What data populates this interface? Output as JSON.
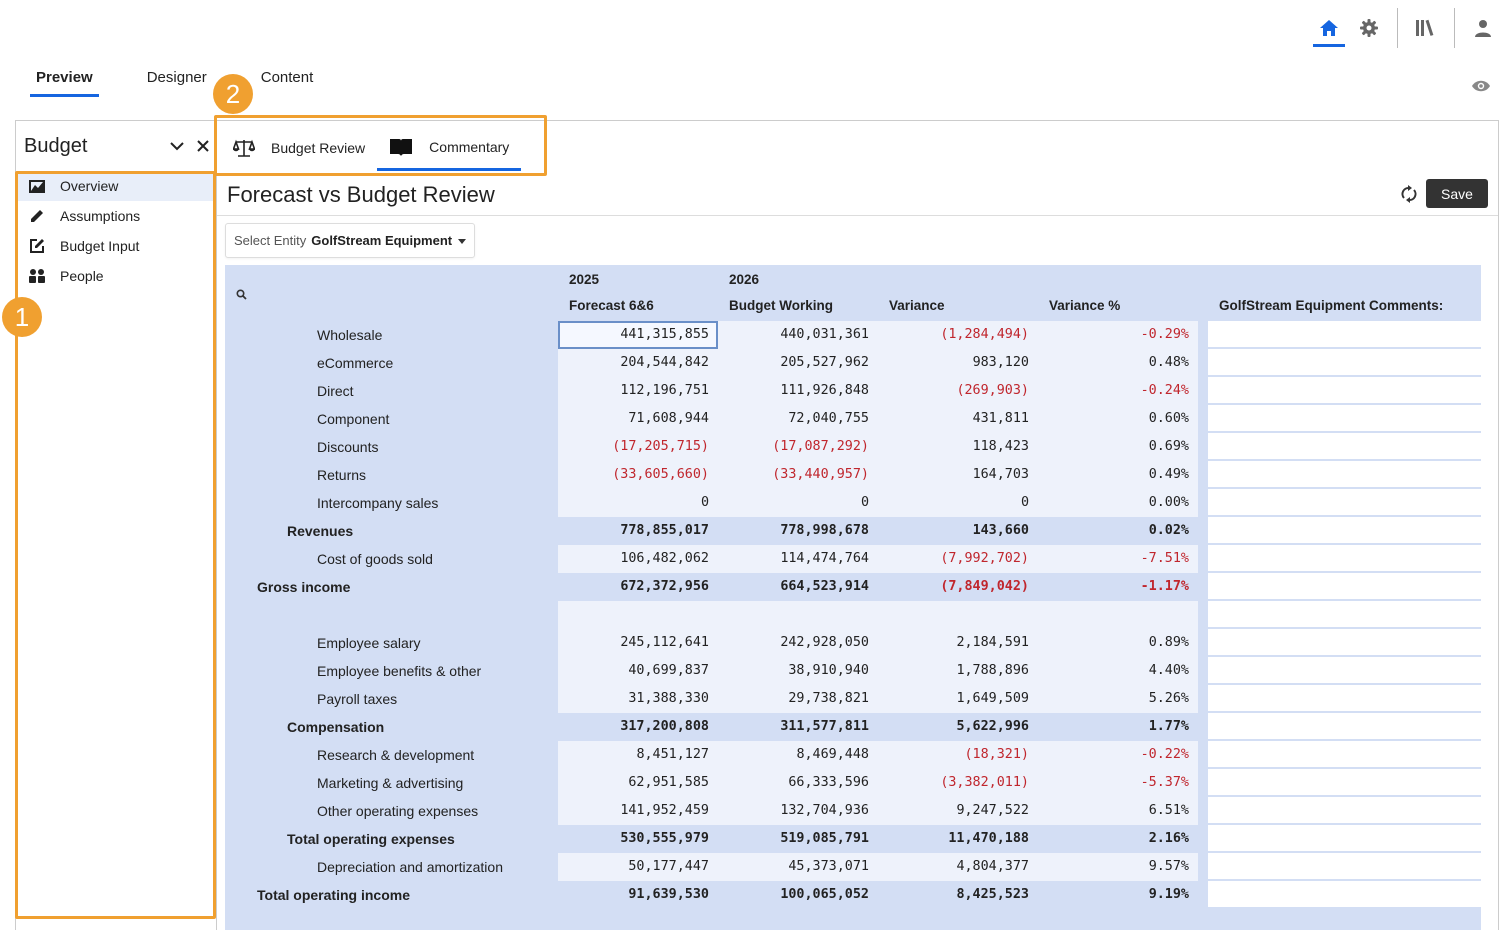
{
  "main_tabs": [
    {
      "label": "Preview",
      "active": true
    },
    {
      "label": "Designer",
      "active": false
    },
    {
      "label": "Content",
      "active": false
    }
  ],
  "top_icons": [
    "home-icon",
    "gear-icon",
    "library-icon",
    "user-icon"
  ],
  "annotations": {
    "sidebar_marker": "1",
    "tabs_marker": "2",
    "color": "#f0a030"
  },
  "sidebar": {
    "title": "Budget",
    "items": [
      {
        "label": "Overview",
        "icon": "dashboard-icon",
        "active": true
      },
      {
        "label": "Assumptions",
        "icon": "pencil-icon",
        "active": false
      },
      {
        "label": "Budget Input",
        "icon": "edit-box-icon",
        "active": false
      },
      {
        "label": "People",
        "icon": "people-icon",
        "active": false
      }
    ]
  },
  "page_tabs": [
    {
      "label": "Budget Review",
      "icon": "scale-icon",
      "active": false
    },
    {
      "label": "Commentary",
      "icon": "book-icon",
      "active": true
    }
  ],
  "page": {
    "title": "Forecast vs Budget Review",
    "save_label": "Save",
    "entity_label": "Select Entity",
    "entity_value": "GolfStream Equipment"
  },
  "grid": {
    "year_headers": [
      "2025",
      "2026"
    ],
    "column_headers": [
      "Forecast 6&6",
      "Budget Working",
      "Variance",
      "Variance %",
      "GolfStream Equipment Comments:"
    ],
    "rows": [
      {
        "label": "Wholesale",
        "level": 3,
        "values": [
          "441,315,855",
          "440,031,361",
          "(1,284,494)",
          "-0.29%"
        ],
        "neg": [
          false,
          false,
          true,
          true
        ],
        "selected": 0
      },
      {
        "label": "eCommerce",
        "level": 3,
        "values": [
          "204,544,842",
          "205,527,962",
          "983,120",
          "0.48%"
        ],
        "neg": [
          false,
          false,
          false,
          false
        ]
      },
      {
        "label": "Direct",
        "level": 3,
        "values": [
          "112,196,751",
          "111,926,848",
          "(269,903)",
          "-0.24%"
        ],
        "neg": [
          false,
          false,
          true,
          true
        ]
      },
      {
        "label": "Component",
        "level": 3,
        "values": [
          "71,608,944",
          "72,040,755",
          "431,811",
          "0.60%"
        ],
        "neg": [
          false,
          false,
          false,
          false
        ]
      },
      {
        "label": "Discounts",
        "level": 3,
        "values": [
          "(17,205,715)",
          "(17,087,292)",
          "118,423",
          "0.69%"
        ],
        "neg": [
          true,
          true,
          false,
          false
        ]
      },
      {
        "label": "Returns",
        "level": 3,
        "values": [
          "(33,605,660)",
          "(33,440,957)",
          "164,703",
          "0.49%"
        ],
        "neg": [
          true,
          true,
          false,
          false
        ]
      },
      {
        "label": "Intercompany sales",
        "level": 3,
        "values": [
          "0",
          "0",
          "0",
          "0.00%"
        ],
        "neg": [
          false,
          false,
          false,
          false
        ]
      },
      {
        "label": "Revenues",
        "level": 2,
        "bold": true,
        "values": [
          "778,855,017",
          "778,998,678",
          "143,660",
          "0.02%"
        ],
        "neg": [
          false,
          false,
          false,
          false
        ]
      },
      {
        "label": "Cost of goods sold",
        "level": 3,
        "values": [
          "106,482,062",
          "114,474,764",
          "(7,992,702)",
          "-7.51%"
        ],
        "neg": [
          false,
          false,
          true,
          true
        ]
      },
      {
        "label": "Gross income",
        "level": 1,
        "bold": true,
        "values": [
          "672,372,956",
          "664,523,914",
          "(7,849,042)",
          "-1.17%"
        ],
        "neg": [
          false,
          false,
          true,
          true
        ]
      },
      {
        "label": "",
        "level": 3,
        "blank": true,
        "values": [
          "",
          "",
          "",
          ""
        ],
        "neg": [
          false,
          false,
          false,
          false
        ]
      },
      {
        "label": "Employee salary",
        "level": 3,
        "values": [
          "245,112,641",
          "242,928,050",
          "2,184,591",
          "0.89%"
        ],
        "neg": [
          false,
          false,
          false,
          false
        ]
      },
      {
        "label": "Employee benefits & other",
        "level": 3,
        "values": [
          "40,699,837",
          "38,910,940",
          "1,788,896",
          "4.40%"
        ],
        "neg": [
          false,
          false,
          false,
          false
        ]
      },
      {
        "label": "Payroll taxes",
        "level": 3,
        "values": [
          "31,388,330",
          "29,738,821",
          "1,649,509",
          "5.26%"
        ],
        "neg": [
          false,
          false,
          false,
          false
        ]
      },
      {
        "label": "Compensation",
        "level": 2,
        "bold": true,
        "values": [
          "317,200,808",
          "311,577,811",
          "5,622,996",
          "1.77%"
        ],
        "neg": [
          false,
          false,
          false,
          false
        ]
      },
      {
        "label": "Research & development",
        "level": 3,
        "values": [
          "8,451,127",
          "8,469,448",
          "(18,321)",
          "-0.22%"
        ],
        "neg": [
          false,
          false,
          true,
          true
        ]
      },
      {
        "label": "Marketing & advertising",
        "level": 3,
        "values": [
          "62,951,585",
          "66,333,596",
          "(3,382,011)",
          "-5.37%"
        ],
        "neg": [
          false,
          false,
          true,
          true
        ]
      },
      {
        "label": "Other operating expenses",
        "level": 3,
        "values": [
          "141,952,459",
          "132,704,936",
          "9,247,522",
          "6.51%"
        ],
        "neg": [
          false,
          false,
          false,
          false
        ]
      },
      {
        "label": "Total operating expenses",
        "level": 2,
        "bold": true,
        "values": [
          "530,555,979",
          "519,085,791",
          "11,470,188",
          "2.16%"
        ],
        "neg": [
          false,
          false,
          false,
          false
        ]
      },
      {
        "label": "Depreciation and amortization",
        "level": 3,
        "values": [
          "50,177,447",
          "45,373,071",
          "4,804,377",
          "9.57%"
        ],
        "neg": [
          false,
          false,
          false,
          false
        ]
      },
      {
        "label": "Total operating income",
        "level": 1,
        "bold": true,
        "values": [
          "91,639,530",
          "100,065,052",
          "8,425,523",
          "9.19%"
        ],
        "neg": [
          false,
          false,
          false,
          false
        ]
      }
    ]
  }
}
